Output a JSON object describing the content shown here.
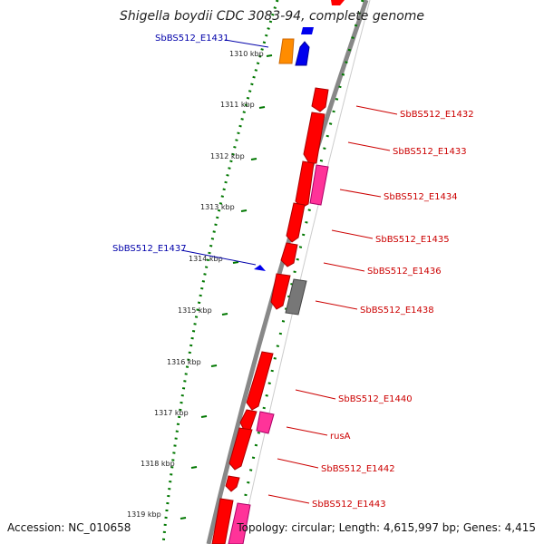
{
  "title": "Shigella boydii CDC 3083-94, complete genome",
  "footer": {
    "accession": "Accession: NC_010658",
    "summary": "Topology: circular; Length: 4,615,997 bp; Genes: 4,415"
  },
  "colors": {
    "forward_label": "#0000aa",
    "reverse_label": "#cc0000",
    "cds": "#ff0000",
    "hypothetical": "#ff3399",
    "pseudo": "#777777",
    "orange_gene": "#ff8c00",
    "blue_gene": "#0000ee",
    "ruler": "#006600",
    "backbone": "#888888"
  },
  "ticks": [
    {
      "label": "1310 kbp"
    },
    {
      "label": "1311 kbp"
    },
    {
      "label": "1312 kbp"
    },
    {
      "label": "1313 kbp"
    },
    {
      "label": "1314 kbp"
    },
    {
      "label": "1315 kbp"
    },
    {
      "label": "1316 kbp"
    },
    {
      "label": "1317 kbp"
    },
    {
      "label": "1318 kbp"
    },
    {
      "label": "1319 kbp"
    }
  ],
  "labels": [
    {
      "text": "SbBS512_E1431",
      "strand": "forward"
    },
    {
      "text": "SbBS512_E1437",
      "strand": "forward"
    },
    {
      "text": "SbBS512_E1432",
      "strand": "reverse"
    },
    {
      "text": "SbBS512_E1433",
      "strand": "reverse"
    },
    {
      "text": "SbBS512_E1434",
      "strand": "reverse"
    },
    {
      "text": "SbBS512_E1435",
      "strand": "reverse"
    },
    {
      "text": "SbBS512_E1436",
      "strand": "reverse"
    },
    {
      "text": "SbBS512_E1438",
      "strand": "reverse"
    },
    {
      "text": "SbBS512_E1440",
      "strand": "reverse"
    },
    {
      "text": "rusA",
      "strand": "reverse"
    },
    {
      "text": "SbBS512_E1442",
      "strand": "reverse"
    },
    {
      "text": "SbBS512_E1443",
      "strand": "reverse"
    }
  ]
}
